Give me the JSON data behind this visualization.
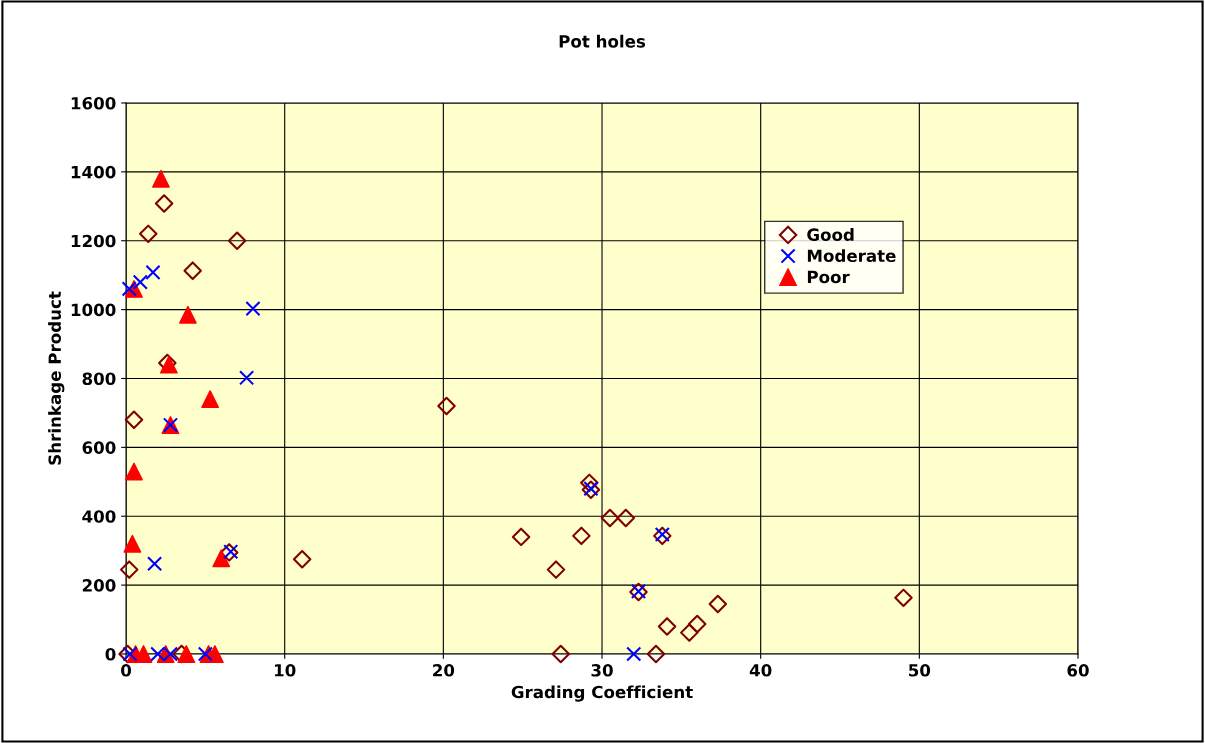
{
  "chart_data": {
    "type": "scatter",
    "title": "Pot holes",
    "xlabel": "Grading Coefficient",
    "ylabel": "Shrinkage Product",
    "xlim": [
      0,
      60
    ],
    "xticks": [
      0,
      10,
      20,
      30,
      40,
      50,
      60
    ],
    "ylim": [
      0,
      1600
    ],
    "yticks": [
      0,
      200,
      400,
      600,
      800,
      1000,
      1200,
      1400,
      1600
    ],
    "grid": true,
    "legend": "right",
    "series": [
      {
        "name": "Good",
        "color": "#800000",
        "marker": "diamond",
        "x": [
          0.1,
          0.2,
          0.5,
          1.4,
          2.4,
          2.6,
          4.2,
          7.0,
          6.5,
          11.1,
          20.2,
          3.5,
          24.9,
          27.1,
          27.4,
          28.7,
          29.2,
          29.3,
          30.5,
          31.5,
          32.3,
          33.8,
          33.4,
          34.1,
          35.5,
          36.0,
          37.3,
          49.0
        ],
        "values": [
          0,
          245,
          680,
          1220,
          1308,
          845,
          1113,
          1200,
          295,
          275,
          720,
          0,
          340,
          245,
          0,
          343,
          497,
          477,
          395,
          395,
          180,
          343,
          0,
          80,
          62,
          87,
          145,
          163
        ]
      },
      {
        "name": "Moderate",
        "color": "#0000ff",
        "marker": "cross",
        "x": [
          0.2,
          0.9,
          1.7,
          8.0,
          7.6,
          2.8,
          1.8,
          6.6,
          29.3,
          33.8,
          32.3,
          32.0,
          0.25,
          2.0,
          2.8,
          5.0
        ],
        "values": [
          1060,
          1080,
          1108,
          1003,
          802,
          665,
          262,
          297,
          480,
          347,
          182,
          0,
          0,
          0,
          0,
          0
        ]
      },
      {
        "name": "Poor",
        "color": "#ff0000",
        "marker": "triangle",
        "x": [
          2.2,
          0.5,
          3.9,
          2.7,
          2.8,
          5.3,
          0.5,
          0.4,
          6.0,
          0.6,
          1.1,
          2.5,
          3.8,
          5.2,
          5.6
        ],
        "values": [
          1380,
          1060,
          985,
          840,
          665,
          740,
          530,
          320,
          278,
          0,
          0,
          0,
          0,
          0,
          0
        ]
      }
    ]
  }
}
